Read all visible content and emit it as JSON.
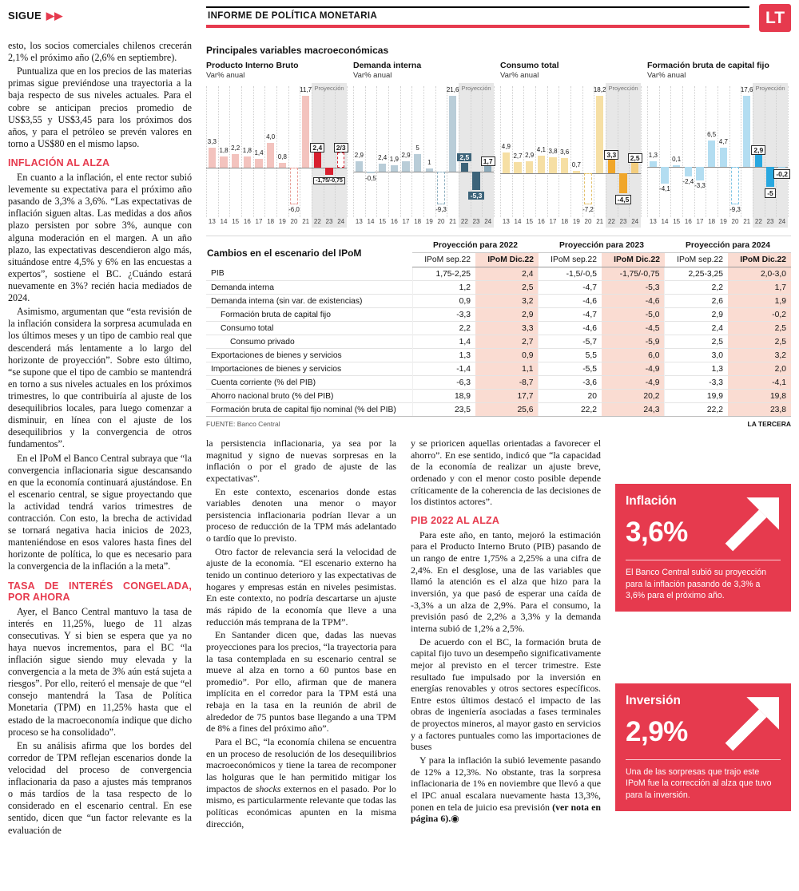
{
  "header": {
    "continuation": "SIGUE",
    "continuation_arrows": "▶▶",
    "section_title": "INFORME DE POLÍTICA MONETARIA",
    "logo": "LT"
  },
  "charts_panel": {
    "title": "Principales variables macroeconómicas"
  },
  "chart_data": [
    {
      "type": "bar",
      "title": "Producto Interno Bruto",
      "ylabel": "Var% anual",
      "categories": [
        "13",
        "14",
        "15",
        "16",
        "17",
        "18",
        "19",
        "20",
        "21",
        "22",
        "23",
        "24"
      ],
      "values": [
        3.3,
        1.8,
        2.2,
        1.8,
        1.4,
        4.0,
        0.8,
        -6.0,
        11.7,
        2.4,
        -1.25,
        2.5
      ],
      "labels": [
        "3,3",
        "1,8",
        "2,2",
        "1,8",
        "1,4",
        "4,0",
        "0,8",
        "-6,0",
        "11,7",
        "2,4",
        "-1,75/-0,75",
        "2/3"
      ],
      "styles": [
        "h",
        "h",
        "h",
        "h",
        "h",
        "h",
        "h",
        "ho",
        "h",
        "p",
        "p",
        "po"
      ],
      "chips": [
        null,
        null,
        null,
        null,
        null,
        null,
        null,
        null,
        null,
        "light",
        "light",
        "light"
      ],
      "colors": {
        "hist": "#f3c3be",
        "histOutline": "#e79d96",
        "proj": "#d8202f",
        "proj2": "#e8828c"
      },
      "proj_from": 9,
      "projection_label": "Proyección"
    },
    {
      "type": "bar",
      "title": "Demanda interna",
      "ylabel": "Var% anual",
      "categories": [
        "13",
        "14",
        "15",
        "16",
        "17",
        "18",
        "19",
        "20",
        "21",
        "22",
        "23",
        "24"
      ],
      "values": [
        2.9,
        -0.5,
        2.4,
        1.9,
        2.9,
        5,
        1,
        -9.3,
        21.6,
        2.5,
        -5.3,
        1.7
      ],
      "labels": [
        "2,9",
        "-0,5",
        "2,4",
        "1,9",
        "2,9",
        "5",
        "1",
        "-9,3",
        "21,6",
        "2,5",
        "-5,3",
        "1,7"
      ],
      "styles": [
        "h",
        "h",
        "h",
        "h",
        "h",
        "h",
        "h",
        "ho",
        "h",
        "p",
        "p",
        "p2"
      ],
      "chips": [
        null,
        null,
        null,
        null,
        null,
        null,
        null,
        null,
        null,
        "dark",
        "dark",
        "light"
      ],
      "colors": {
        "hist": "#b9cdd8",
        "histOutline": "#8fb0c0",
        "proj": "#3c6379",
        "proj2": "#8aa9ba"
      },
      "proj_from": 9,
      "projection_label": "Proyección"
    },
    {
      "type": "bar",
      "title": "Consumo total",
      "ylabel": "Var% anual",
      "categories": [
        "13",
        "14",
        "15",
        "16",
        "17",
        "18",
        "19",
        "20",
        "21",
        "22",
        "23",
        "24"
      ],
      "values": [
        4.9,
        2.7,
        2.9,
        4.1,
        3.8,
        3.6,
        0.7,
        -7.2,
        18.2,
        3.3,
        -4.5,
        2.5
      ],
      "labels": [
        "4,9",
        "2,7",
        "2,9",
        "4,1",
        "3,8",
        "3,6",
        "0,7",
        "-7,2",
        "18,2",
        "3,3",
        "-4,5",
        "2,5"
      ],
      "styles": [
        "h",
        "h",
        "h",
        "h",
        "h",
        "h",
        "h",
        "ho",
        "h",
        "p",
        "p",
        "p2"
      ],
      "chips": [
        null,
        null,
        null,
        null,
        null,
        null,
        null,
        null,
        null,
        "light",
        "light",
        "light"
      ],
      "colors": {
        "hist": "#f6dfa4",
        "histOutline": "#e3c06a",
        "proj": "#f0a62a",
        "proj2": "#f3cd7e"
      },
      "proj_from": 9,
      "projection_label": "Proyección"
    },
    {
      "type": "bar",
      "title": "Formación bruta de capital fijo",
      "ylabel": "Var% anual",
      "categories": [
        "13",
        "14",
        "15",
        "16",
        "17",
        "18",
        "19",
        "20",
        "21",
        "22",
        "23",
        "24"
      ],
      "values": [
        1.3,
        -4.1,
        0.1,
        -2.4,
        -3.3,
        6.5,
        4.7,
        -9.3,
        17.6,
        2.9,
        -5.0,
        -0.2
      ],
      "labels": [
        "1,3",
        "-4,1",
        "0,1",
        "-2,4",
        "-3,3",
        "6,5",
        "4,7",
        "-9,3",
        "17,6",
        "2,9",
        "-5",
        "-0,2"
      ],
      "styles": [
        "h",
        "h",
        "h",
        "h",
        "h",
        "h",
        "h",
        "ho",
        "h",
        "p",
        "p",
        "p2"
      ],
      "chips": [
        null,
        null,
        null,
        null,
        null,
        null,
        null,
        null,
        null,
        "light",
        "light",
        "light"
      ],
      "colors": {
        "hist": "#b3ddf1",
        "histOutline": "#7fc4e4",
        "proj": "#29a8e0",
        "proj2": "#8ccdec"
      },
      "proj_from": 9,
      "projection_label": "Proyección"
    }
  ],
  "table": {
    "title": "Cambios en el escenario del IPoM",
    "groups": [
      "Proyección para 2022",
      "Proyección para 2023",
      "Proyección para 2024"
    ],
    "subheader_sep": "IPoM sep.22",
    "subheader_dic": "IPoM Dic.22",
    "rows": [
      {
        "label": "PIB",
        "indent": 0,
        "values": [
          "1,75-2,25",
          "2,4",
          "-1,5/-0,5",
          "-1,75/-0,75",
          "2,25-3,25",
          "2,0-3,0"
        ]
      },
      {
        "label": "Demanda interna",
        "indent": 0,
        "values": [
          "1,2",
          "2,5",
          "-4,7",
          "-5,3",
          "2,2",
          "1,7"
        ]
      },
      {
        "label": "Demanda interna (sin var. de existencias)",
        "indent": 0,
        "values": [
          "0,9",
          "3,2",
          "-4,6",
          "-4,6",
          "2,6",
          "1,9"
        ]
      },
      {
        "label": "Formación bruta de capital fijo",
        "indent": 1,
        "values": [
          "-3,3",
          "2,9",
          "-4,7",
          "-5,0",
          "2,9",
          "-0,2"
        ]
      },
      {
        "label": "Consumo total",
        "indent": 1,
        "values": [
          "2,2",
          "3,3",
          "-4,6",
          "-4,5",
          "2,4",
          "2,5"
        ]
      },
      {
        "label": "Consumo privado",
        "indent": 2,
        "values": [
          "1,4",
          "2,7",
          "-5,7",
          "-5,9",
          "2,5",
          "2,5"
        ]
      },
      {
        "label": "Exportaciones de bienes y servicios",
        "indent": 0,
        "values": [
          "1,3",
          "0,9",
          "5,5",
          "6,0",
          "3,0",
          "3,2"
        ]
      },
      {
        "label": "Importaciones de bienes y servicios",
        "indent": 0,
        "values": [
          "-1,4",
          "1,1",
          "-5,5",
          "-4,9",
          "1,3",
          "2,0"
        ]
      },
      {
        "label": "Cuenta corriente (% del PIB)",
        "indent": 0,
        "values": [
          "-6,3",
          "-8,7",
          "-3,6",
          "-4,9",
          "-3,3",
          "-4,1"
        ]
      },
      {
        "label": "Ahorro nacional bruto (% del PIB)",
        "indent": 0,
        "values": [
          "18,9",
          "17,7",
          "20",
          "20,2",
          "19,9",
          "19,8"
        ]
      },
      {
        "label": "Formación bruta de capital fijo nominal (% del PIB)",
        "indent": 0,
        "values": [
          "23,5",
          "25,6",
          "22,2",
          "24,3",
          "22,2",
          "23,8"
        ]
      }
    ],
    "source": "FUENTE: Banco Central",
    "credit": "LA TERCERA"
  },
  "article": {
    "col1": [
      {
        "flush": true,
        "text": "esto, los socios comerciales chilenos crecerán 2,1% el próximo año (2,6% en septiembre)."
      },
      {
        "text": "Puntualiza que en los precios de las materias primas sigue previéndose una trayectoria a la baja respecto de sus niveles actuales. Para el cobre se anticipan precios promedio de US$3,55 y US$3,45 para los próximos dos años, y para el petróleo se prevén valores en torno a US$80 en el mismo lapso."
      },
      {
        "h": true,
        "text": "INFLACIÓN AL ALZA"
      },
      {
        "text": "En cuanto a la inflación, el ente rector subió levemente su expectativa para el próximo año pasando de 3,3% a 3,6%. “Las expectativas de inflación siguen altas. Las medidas a dos años plazo persisten por sobre 3%, aunque con alguna moderación en el margen. A un año plazo, las expectativas descendieron algo más, situándose entre 4,5% y 6% en las encuestas a expertos”, sostiene el BC. ¿Cuándo estará nuevamente en 3%? recién hacia mediados de 2024."
      },
      {
        "text": "Asimismo, argumentan que “esta revisión de la inflación considera la sorpresa acumulada en los últimos meses y un tipo de cambio real que descenderá más lentamente a lo largo del horizonte de proyección”. Sobre esto último, “se supone que el tipo de cambio se mantendrá en torno a sus niveles actuales en los próximos trimestres, lo que contribuiría al ajuste de los desequilibrios locales, para luego comenzar a disminuir, en línea con el ajuste de los desequilibrios y la convergencia de otros fundamentos”."
      },
      {
        "text": "En el IPoM el Banco Central subraya que “la convergencia inflacionaria sigue descansando en que la economía continuará ajustándose. En el escenario central, se sigue proyectando que la actividad tendrá varios trimestres de contracción. Con esto, la brecha de actividad se tornará negativa hacia inicios de 2023, manteniéndose en esos valores hasta fines del horizonte de política, lo que es necesario para la convergencia de la inflación a la meta”."
      },
      {
        "h": true,
        "text": "TASA DE INTERÉS CONGELADA, POR AHORA"
      },
      {
        "text": "Ayer, el Banco Central mantuvo la tasa de interés en 11,25%, luego de 11 alzas consecutivas. Y si bien se espera que ya no haya nuevos incrementos, para el BC “la inflación sigue siendo muy elevada y la convergencia a la meta de 3% aún está sujeta a riesgos”. Por ello, reiteró el mensaje de que “el consejo mantendrá la Tasa de Política Monetaria (TPM) en 11,25% hasta que el estado de la macroeconomía indique que dicho proceso se ha consolidado”."
      },
      {
        "text": "En su análisis afirma que los bordes del corredor de TPM reflejan escenarios donde la velocidad del proceso de convergencia inflacionaria da paso a ajustes más tempranos o más tardíos de la tasa respecto de lo considerado en el escenario central. En ese sentido, dicen que “un factor relevante es la evaluación de"
      }
    ],
    "col2": [
      {
        "flush": true,
        "text": "la persistencia inflacionaria, ya sea por la magnitud y signo de nuevas sorpresas en la inflación o por el grado de ajuste de las expectativas”."
      },
      {
        "text": "En este contexto, escenarios donde estas variables denoten una menor o mayor persistencia inflacionaria podrían llevar a un proceso de reducción de la TPM más adelantado o tardío que lo previsto."
      },
      {
        "text": "Otro factor de relevancia será la velocidad de ajuste de la economía. “El escenario externo ha tenido un continuo deterioro y las expectativas de hogares y empresas están en niveles pesimistas. En este contexto, no podría descartarse un ajuste más rápido de la economía que lleve a una reducción más temprana de la TPM”."
      },
      {
        "text": "En Santander dicen que, dadas las nuevas proyecciones para los precios, “la trayectoria para la tasa contemplada en su escenario central se mueve al alza en torno a 60 puntos base en promedio”. Por ello, afirman que de manera implícita en el corredor para la TPM está una rebaja en la tasa en la reunión de abril de alrededor de 75 puntos base llegando a una TPM de 8% a fines del próximo año”."
      },
      {
        "parts": [
          {
            "text": "Para el BC, “la economía chilena se encuentra en un proceso de resolución de los desequilibrios macroeconómicos y tiene la tarea de recomponer las holguras que le han permitido mitigar los impactos de "
          },
          {
            "text": "shocks",
            "i": 1
          },
          {
            "text": " externos en el pasado. Por lo mismo, es particularmente relevante que todas las políticas económicas apunten en la misma dirección,"
          }
        ]
      }
    ],
    "col3": [
      {
        "flush": true,
        "text": "y se prioricen aquellas orientadas a favorecer el ahorro”. En ese sentido, indicó que “la capacidad de la economía de realizar un ajuste breve, ordenado y con el menor costo posible depende críticamente de la coherencia de las decisiones de los distintos actores”."
      },
      {
        "h": true,
        "text": "PIB 2022 AL ALZA"
      },
      {
        "text": "Para este año, en tanto, mejoró la estimación para el Producto Interno Bruto (PIB) pasando de un rango de entre 1,75% a 2,25% a una cifra de 2,4%. En el desglose, una de las variables que llamó la atención es el alza que hizo para la inversión, ya que pasó de esperar una caída de -3,3% a un alza de 2,9%. Para el consumo, la previsión pasó de 2,2% a 3,3% y la demanda interna subió de 1,2% a 2,5%."
      },
      {
        "text": "De acuerdo con el BC, la formación bruta de capital fijo tuvo un desempeño significativamente mejor al previsto en el tercer trimestre. Este resultado fue impulsado por la inversión en energías renovables y otros sectores específicos. Entre estos últimos destacó el impacto de las obras de ingeniería asociadas a fases terminales de proyectos mineros, al mayor gasto en servicios y a factores puntuales como las importaciones de buses"
      },
      {
        "parts": [
          {
            "text": "Y para la inflación la subió levemente pasando de 12% a 12,3%. No obstante, tras la sorpresa inflacionaria de 1% en noviembre que llevó a que el IPC anual escalara nuevamente hasta 13,3%, ponen en tela de juicio esa previsión "
          },
          {
            "text": "(ver nota en página 6).",
            "b": 1
          },
          {
            "text": "◉"
          }
        ]
      }
    ]
  },
  "callouts": [
    {
      "title": "Inflación",
      "value": "3,6%",
      "caption": "El Banco Central subió su proyección para la inflación pasando de 3,3% a 3,6% para el próximo año."
    },
    {
      "title": "Inversión",
      "value": "2,9%",
      "caption": "Una de las sorpresas que trajo este IPoM fue la corrección al alza que tuvo para la inversión."
    }
  ]
}
